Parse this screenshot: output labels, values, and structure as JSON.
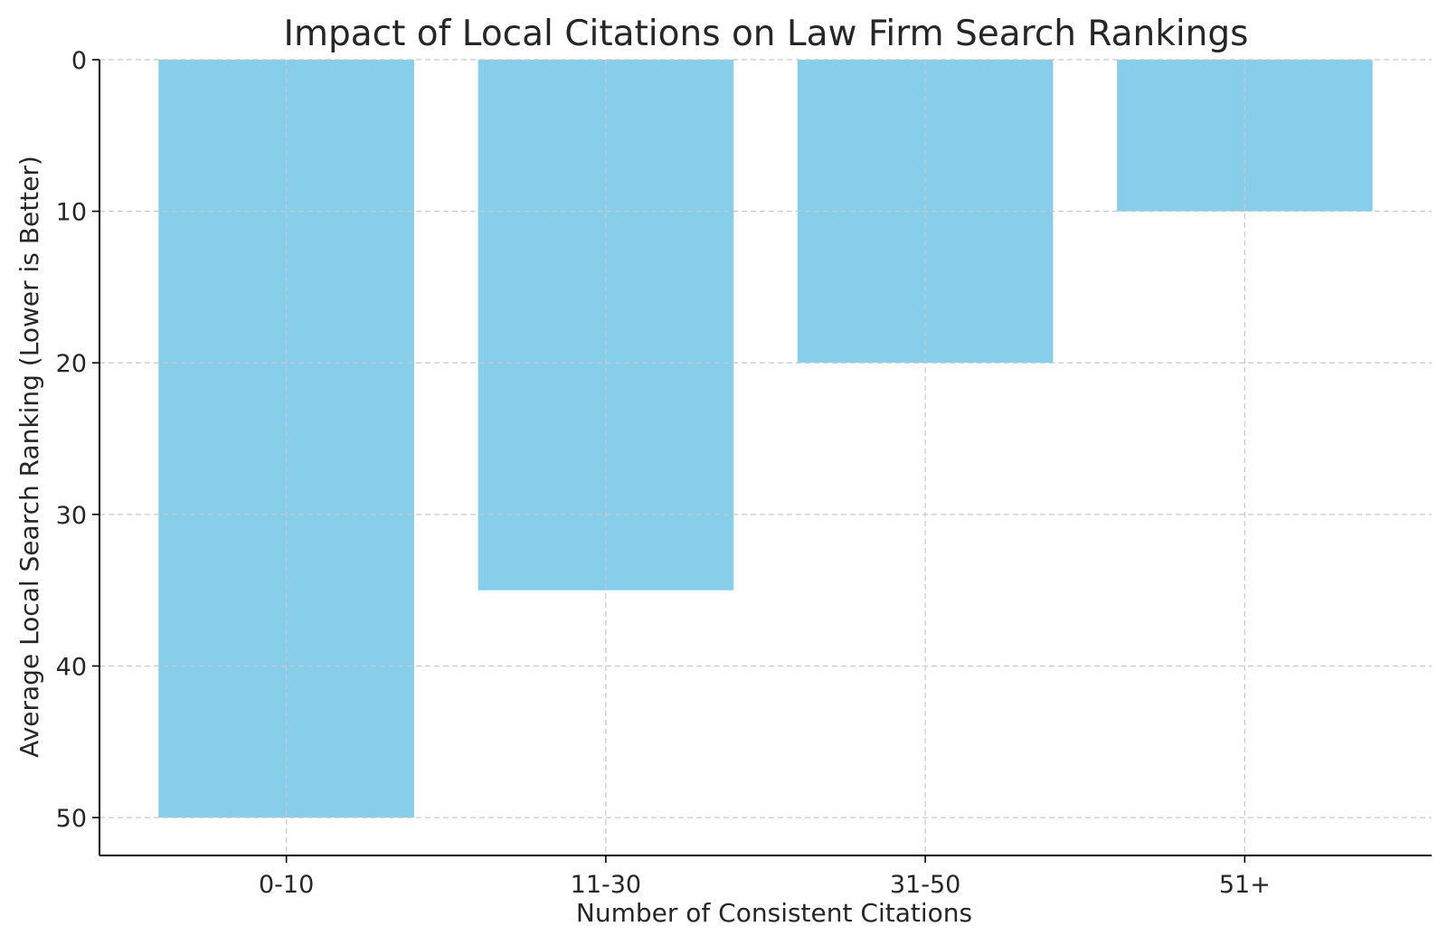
{
  "chart_data": {
    "type": "bar",
    "title": "Impact of Local Citations on Law Firm Search Rankings",
    "xlabel": "Number of Consistent Citations",
    "ylabel": "Average Local Search Ranking (Lower is Better)",
    "categories": [
      "0-10",
      "11-30",
      "31-50",
      "51+"
    ],
    "values": [
      50,
      35,
      20,
      10
    ],
    "ylim": [
      0,
      52.5
    ],
    "y_axis_inverted": true,
    "yticks": [
      0,
      10,
      20,
      30,
      40,
      50
    ],
    "grid": true,
    "bar_color": "#87CEEB"
  }
}
